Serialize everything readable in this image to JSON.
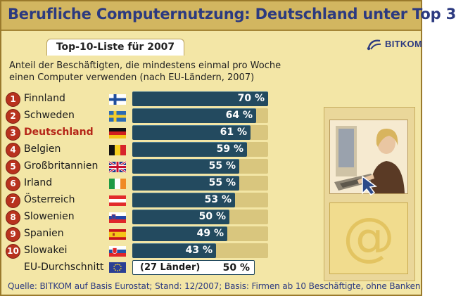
{
  "header": {
    "title": "Berufliche Computernutzung: Deutschland unter Top 3"
  },
  "subtitle": "Top-10-Liste für 2007",
  "logo": {
    "text": "BITKOM"
  },
  "description": [
    "Anteil der Beschäftigten, die mindestens einmal pro Woche",
    "einen Computer verwenden (nach EU-Ländern, 2007)"
  ],
  "chart_data": {
    "type": "bar",
    "title": "Top-10-Liste für 2007",
    "categories": [
      "Finnland",
      "Schweden",
      "Deutschland",
      "Belgien",
      "Großbritannien",
      "Irland",
      "Österreich",
      "Slowenien",
      "Spanien",
      "Slowakei"
    ],
    "ranks": [
      "1",
      "2",
      "3",
      "4",
      "5",
      "6",
      "7",
      "8",
      "9",
      "10"
    ],
    "values": [
      70,
      64,
      61,
      59,
      55,
      55,
      53,
      50,
      49,
      43
    ],
    "value_labels": [
      "70 %",
      "64 %",
      "61 %",
      "59 %",
      "55 %",
      "55 %",
      "53 %",
      "50 %",
      "49 %",
      "43 %"
    ],
    "unit": "%",
    "highlight": "Deutschland",
    "xlim": [
      0,
      70
    ],
    "orientation": "horizontal",
    "bar_color": "#234a5f",
    "highlight_color": "#b52618",
    "reference": {
      "label": "EU-Durchschnitt",
      "note": "(27 Länder)",
      "value": 50,
      "value_label": "50 %"
    }
  },
  "source": "Quelle: BITKOM auf Basis Eurostat; Stand: 12/2007; Basis: Firmen ab 10 Beschäftigte, ohne Banken",
  "decor": {
    "at_symbol": "@"
  },
  "colors": {
    "header_bg": "#d2b660",
    "title": "#2c3a80",
    "background": "#f3e6a6",
    "rank_badge": "#b8321e"
  }
}
